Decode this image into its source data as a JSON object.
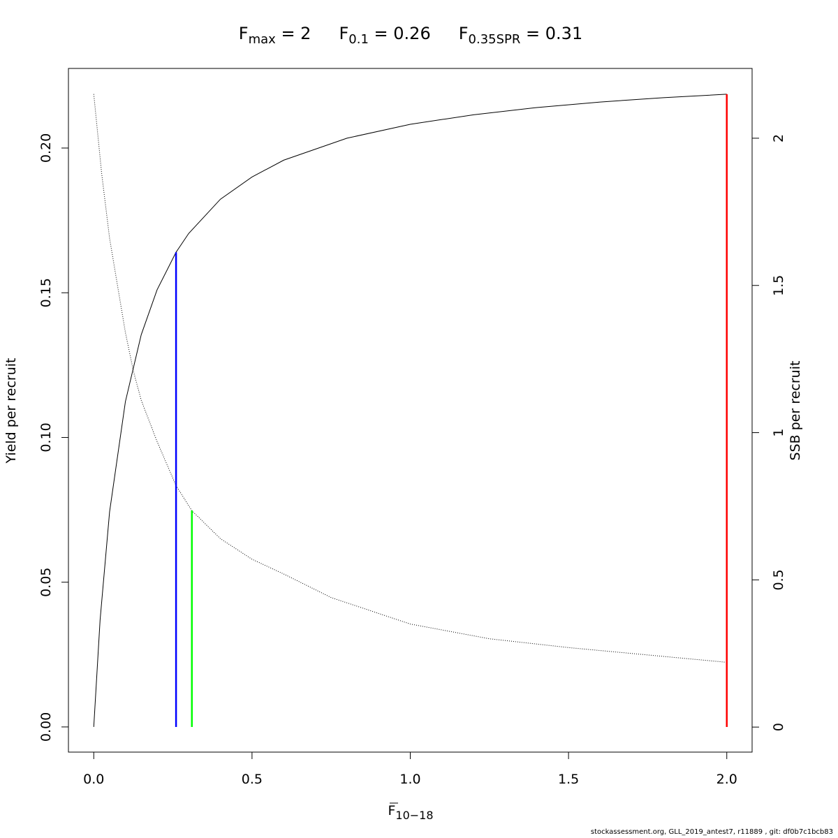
{
  "chart_data": {
    "type": "line",
    "title": [
      {
        "base": "F",
        "sub": "max",
        "rest": " = 2"
      },
      {
        "base": "F",
        "sub": "0.1",
        "rest": " = 0.26"
      },
      {
        "base": "F",
        "sub": "0.35SPR",
        "rest": " = 0.31"
      }
    ],
    "xlabel": {
      "base": "F",
      "sub": "10−18"
    },
    "ylabel": "Yield per recruit",
    "y2label": "SSB per recruit",
    "footer": "stockassessment.org, GLL_2019_antest7, r11889 , git: df0b7c1bcb83",
    "xlim": [
      -0.08,
      2.08
    ],
    "xticks": [
      {
        "value": 0,
        "label": "0.0"
      },
      0.5,
      {
        "value": 1,
        "label": "1.0"
      },
      1.5,
      {
        "value": 2,
        "label": "2.0"
      }
    ],
    "ylim": [
      -0.0087,
      0.2275
    ],
    "yticks": [
      {
        "value": 0,
        "label": "0.00"
      },
      0.05,
      {
        "value": 0.1,
        "label": "0.10"
      },
      0.15,
      {
        "value": 0.2,
        "label": "0.20"
      }
    ],
    "y2lim": [
      -0.085,
      2.237
    ],
    "y2ticks": [
      0,
      0.5,
      1,
      1.5,
      2
    ],
    "series": [
      {
        "color": "#000000",
        "linestyle": "solid",
        "axis": "y",
        "x": [
          0,
          0.02,
          0.05,
          0.1,
          0.15,
          0.2,
          0.26,
          0.3,
          0.4,
          0.5,
          0.6,
          0.8,
          1.0,
          1.2,
          1.4,
          1.6,
          1.8,
          2.0
        ],
        "values": [
          0,
          0.0369,
          0.0743,
          0.1124,
          0.1355,
          0.151,
          0.164,
          0.1705,
          0.1823,
          0.19,
          0.1958,
          0.2034,
          0.2082,
          0.2115,
          0.214,
          0.2159,
          0.2174,
          0.2186
        ]
      },
      {
        "color": "#000000",
        "linestyle": "dotted",
        "axis": "y2",
        "x": [
          0,
          0.025,
          0.05,
          0.075,
          0.1,
          0.125,
          0.15,
          0.2,
          0.26,
          0.31,
          0.4,
          0.5,
          0.6,
          0.75,
          1.0,
          1.25,
          1.5,
          1.75,
          2.0
        ],
        "values": [
          2.15,
          1.88,
          1.66,
          1.5,
          1.34,
          1.21,
          1.11,
          0.97,
          0.82,
          0.735,
          0.64,
          0.57,
          0.52,
          0.44,
          0.35,
          0.3,
          0.27,
          0.245,
          0.22
        ]
      }
    ],
    "reference_lines": [
      {
        "x": 0.26,
        "ymax": 0.164,
        "color": "#0000ff"
      },
      {
        "x": 0.31,
        "ymax": 0.0748,
        "color": "#00ff00"
      },
      {
        "x": 2,
        "ymax": 0.2186,
        "color": "#ff0000"
      }
    ]
  }
}
